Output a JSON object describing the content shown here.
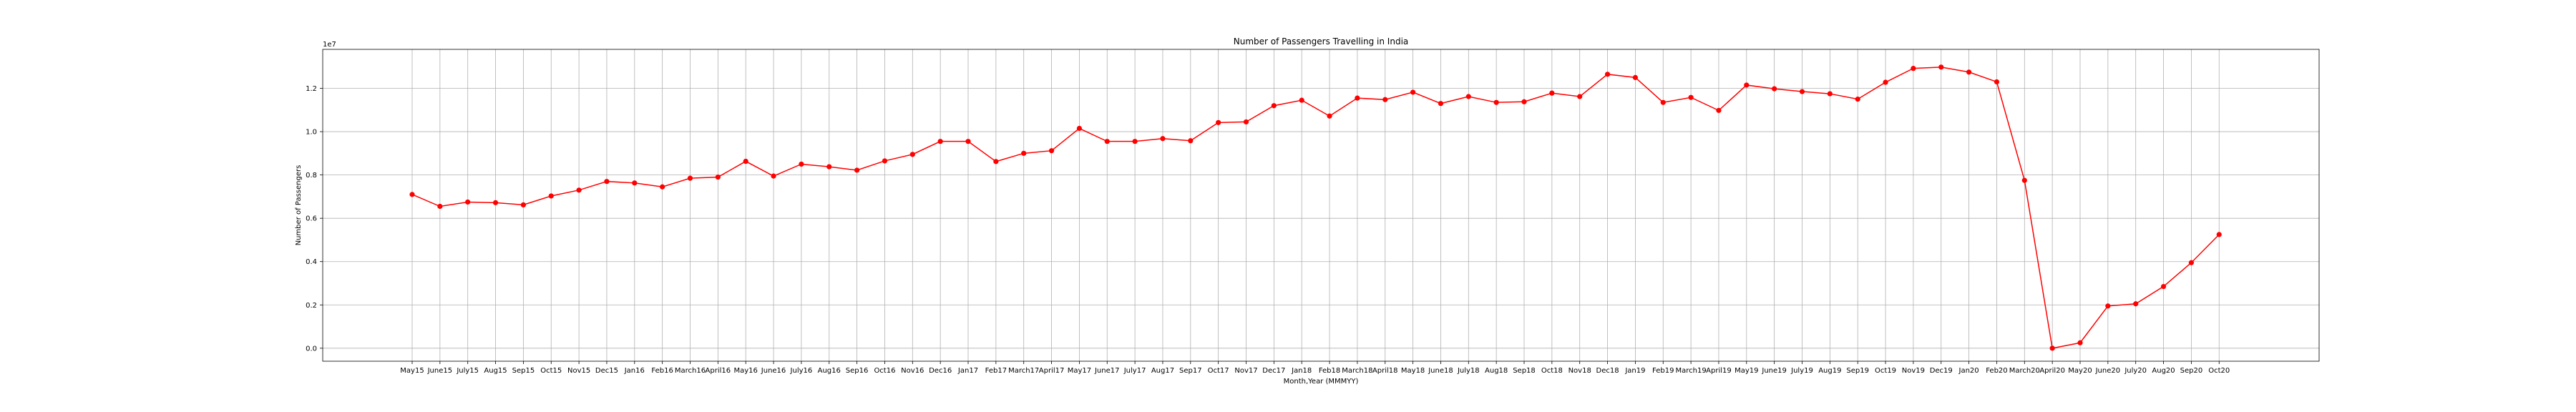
{
  "chart_data": {
    "type": "line",
    "title": "Number of Passengers Travelling in India",
    "xlabel": "Month,Year (MMMYY)",
    "ylabel": "Number of Passengers",
    "y_offset_text": "1e7",
    "ylim": [
      -0.06,
      1.38
    ],
    "y_ticks": [
      0.0,
      0.2,
      0.4,
      0.6,
      0.8,
      1.0,
      1.2
    ],
    "y_tick_labels": [
      "0.0",
      "0.2",
      "0.4",
      "0.6",
      "0.8",
      "1.0",
      "1.2"
    ],
    "grid": true,
    "color": "#ff0000",
    "marker": "circle",
    "categories": [
      "May15",
      "June15",
      "July15",
      "Aug15",
      "Sep15",
      "Oct15",
      "Nov15",
      "Dec15",
      "Jan16",
      "Feb16",
      "March16",
      "April16",
      "May16",
      "June16",
      "July16",
      "Aug16",
      "Sep16",
      "Oct16",
      "Nov16",
      "Dec16",
      "Jan17",
      "Feb17",
      "March17",
      "April17",
      "May17",
      "June17",
      "July17",
      "Aug17",
      "Sep17",
      "Oct17",
      "Nov17",
      "Dec17",
      "Jan18",
      "Feb18",
      "March18",
      "April18",
      "May18",
      "June18",
      "July18",
      "Aug18",
      "Sep18",
      "Oct18",
      "Nov18",
      "Dec18",
      "Jan19",
      "Feb19",
      "March19",
      "April19",
      "May19",
      "June19",
      "July19",
      "Aug19",
      "Sep19",
      "Oct19",
      "Nov19",
      "Dec19",
      "Jan20",
      "Feb20",
      "March20",
      "April20",
      "May20",
      "June20",
      "July20",
      "Aug20",
      "Sep20",
      "Oct20"
    ],
    "values": [
      0.71,
      0.655,
      0.675,
      0.672,
      0.662,
      0.703,
      0.73,
      0.77,
      0.763,
      0.745,
      0.785,
      0.79,
      0.863,
      0.795,
      0.85,
      0.838,
      0.822,
      0.865,
      0.895,
      0.955,
      0.955,
      0.862,
      0.9,
      0.912,
      1.015,
      0.955,
      0.955,
      0.968,
      0.958,
      1.042,
      1.045,
      1.12,
      1.145,
      1.072,
      1.155,
      1.148,
      1.182,
      1.13,
      1.162,
      1.135,
      1.138,
      1.178,
      1.162,
      1.265,
      1.25,
      1.135,
      1.158,
      1.098,
      1.215,
      1.198,
      1.185,
      1.175,
      1.15,
      1.228,
      1.292,
      1.298,
      1.275,
      1.23,
      0.775,
      0.0,
      0.025,
      0.195,
      0.205,
      0.285,
      0.395,
      0.525
    ]
  }
}
